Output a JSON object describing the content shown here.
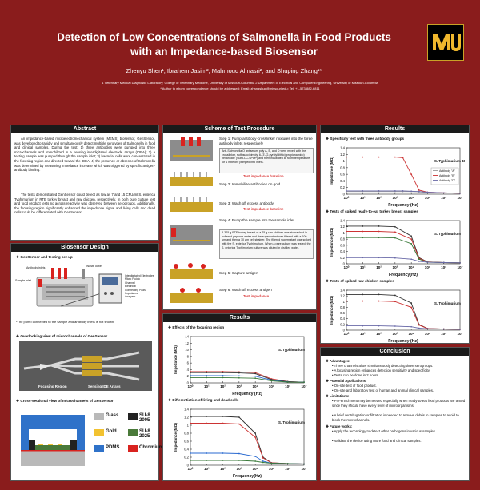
{
  "header": {
    "title_line1": "Detection of Low Concentrations of Salmonella in Food Products",
    "title_line2": "with an Impedance-based Biosensor",
    "authors": "Zhenyu Shen¹, Ibrahem Jasim², Mahmoud Almasri², and Shuping Zhang¹*",
    "affiliation": "1 Veterinary Medical Diagnostic Laboratory, College of Veterinary Medicine, University of Missouri-Columbia    2 Department of Electrical and Computer Engineering, University of Missouri-Columbia",
    "correspondence": "* Author to whom correspondence should be addressed; Email: zhangshup@missouri.edu; Tel: +1-573-882-6811",
    "logo_text": "MU"
  },
  "abstract": {
    "heading": "Abstract",
    "p1": "An impedance-based microelectromechanical system (MEMS) biosensor, GenSensor, was developed to rapidly and simultaneously detect multiple serotypes of Salmonella in food and clinical samples. During the test: 1) three antibodies were pumped into three microchannels and immobilized in a sensing interdigitated electrode arrays (IDEA); 2) a testing sample was pumped through the sample inlet; 3) bacterial cells were concentrated in the focusing region and directed toward the IDEA; 4) the presence or absence of Salmonella was determined by measuring impedance increase which was triggered by specific antigen-antibody binding.",
    "p2": "The tests demonstrated GenSensor could detect as low as 7 and 15 CFU/ml S. enterica Typhimurium in RTE turkey breast and raw chicken, respectively. In both pure culture test and food product tests no across-reactivity was observed between serogroups. Additionally, the focusing region significantly enhanced the impedance signal and living cells and dead cells could be differentiated with GenSensor."
  },
  "biosensor": {
    "heading": "Biosensor Design",
    "sub1": "GenSensor and testing set-up",
    "labels": [
      "Antibody inlets",
      "Sample inlet",
      "Waste outlet"
    ],
    "instrument_list": [
      "Interdigitated Electrodes",
      "Micro Fluidic",
      "Channel",
      "Electrical",
      "Connecting Pads",
      "Impedance",
      "Analyzer"
    ],
    "footnote": "*The pump connected to the sample and antibody inlets is not shown.",
    "sub2": "Overlooking view of microchannels of GenSensor",
    "chip_labels": [
      "Focusing Region",
      "Sensing IDE Arrays"
    ],
    "sub3": "Cross-sectional view of microchannels of GenSensor",
    "legend": [
      {
        "label": "Glass",
        "color": "#b9b9b9"
      },
      {
        "label": "SU-8 2005",
        "color": "#222222"
      },
      {
        "label": "Gold",
        "color": "#f2c230"
      },
      {
        "label": "SU-8 2025",
        "color": "#4a7a3a"
      },
      {
        "label": "PDMS",
        "color": "#2f72c9"
      },
      {
        "label": "Chromium",
        "color": "#d9231f"
      }
    ]
  },
  "scheme": {
    "heading": "Scheme of Test Procedure",
    "step1": "Step 1: Pump antibody-crosslinker mixtures into the three antibody inlets respectively",
    "note1": "Anti-Salmonella O antiserum poly A, B, and D were mixed with the crosslinker, sulfosuccinimidyl 6-(3'-(2-pyridyldithio) propionamido) hexanoate (Sulfo-LC-SPDP) and then incubated at room temperature for 1 h before pumped into inlets.",
    "test_impedance_baseline": "Test impedance baseline",
    "step2": "Step 2: Immobilize antibodies on gold",
    "step3": "Step 3: Wash off excess antibody",
    "step4": "Step 4: Pump the sample into the sample inlet",
    "note2": "A 325 g RTE turkey breast or a 25 g raw chicken was stomached in buffered peptone water and the supernatant was filtered with a 100 µm and then a 10 µm cell strainer. The filtered supernatant was spiked with the S. enterica Typhimurium. When a pure culture was tested, the S. enterica Typhimurium culture was diluted in distilled water.",
    "step5": "Step 5: Capture antigen",
    "step6": "Step 6: Wash off excess antigen",
    "test_impedance": "Test impedance"
  },
  "results_mid": {
    "heading": "Results",
    "sub1": "Effects of the focusing region",
    "sub2": "Differentiation of living and dead cells"
  },
  "results_right": {
    "heading": "Results",
    "sub1": "Specificity test with three antibody groups",
    "sub2": "Tests of spiked ready-to-eat turkey breast samples",
    "sub3": "Tests of spiked raw chicken samples"
  },
  "conclusion": {
    "heading": "Conclusion",
    "advantages_title": "Advantages:",
    "advantages": [
      "Three channels allow simultaneously detecting three serogroups.",
      "A focusing region enhances detection sensitivity and specificity.",
      "Tests can be done in 2 hours."
    ],
    "applications_title": "Potential Applications:",
    "applications": [
      "On-site test of food product.",
      "On-site and laboratory test of human and animal clinical samples."
    ],
    "limitations_title": "Limitations:",
    "limitations": [
      "Pre-enrichment may be needed especially when ready-to-eat food products are tested since they should have every level of microorganisms.",
      "A brief centrifugation or filtration is needed to remove debris in samples to avoid to block the microchannels."
    ],
    "future_title": "Future works:",
    "future": [
      "Apply the technology to detect other pathogens in various samples.",
      "Validate the device using more food and clinical samples."
    ]
  },
  "chart_data": [
    {
      "type": "line",
      "panel": "Specificity test with three antibody groups",
      "annotation": "S. Typhimurium 40 CFU/ml",
      "xlabel": "Frequency (Hz)",
      "ylabel": "Impedance (MΩ)",
      "xscale": "log",
      "xlim": [
        1,
        10000000
      ],
      "ylim": [
        0,
        1.4
      ],
      "x_ticks": [
        "10⁰",
        "10¹",
        "10²",
        "10³",
        "10⁴",
        "10⁵",
        "10⁶",
        "10⁷"
      ],
      "y_ticks": [
        "0",
        "0.2",
        "0.4",
        "0.6",
        "0.8",
        "1",
        "1.2",
        "1.4"
      ],
      "legend_position": "right",
      "series": [
        {
          "name": "Antibody \"A\"",
          "color": "#999999",
          "x": [
            1,
            10,
            100,
            1000,
            3000,
            10000,
            30000,
            100000,
            1000000,
            10000000
          ],
          "y": [
            0.08,
            0.08,
            0.08,
            0.08,
            0.08,
            0.08,
            0.07,
            0.05,
            0.04,
            0.03
          ]
        },
        {
          "name": "Antibody \"B\"",
          "color": "#cc3333",
          "x": [
            1,
            10,
            100,
            1000,
            3000,
            10000,
            30000,
            100000,
            1000000,
            10000000
          ],
          "y": [
            1.12,
            1.12,
            1.12,
            1.12,
            1.1,
            0.6,
            0.12,
            0.06,
            0.04,
            0.03
          ]
        },
        {
          "name": "Antibody \"D\"",
          "color": "#6a6aa8",
          "x": [
            1,
            10,
            100,
            1000,
            3000,
            10000,
            30000,
            100000,
            1000000,
            10000000
          ],
          "y": [
            0.1,
            0.1,
            0.1,
            0.1,
            0.1,
            0.09,
            0.08,
            0.06,
            0.04,
            0.03
          ]
        }
      ]
    },
    {
      "type": "line",
      "panel": "Tests of spiked ready-to-eat turkey breast samples",
      "annotation": "S. Typhimurium",
      "xlabel": "Frequency(Hz)",
      "ylabel": "Impedance (MΩ)",
      "xscale": "log",
      "xlim": [
        1,
        10000000
      ],
      "ylim": [
        0,
        1.4
      ],
      "x_ticks": [
        "10⁰",
        "10¹",
        "10²",
        "10³",
        "10⁴",
        "10⁵",
        "10⁶",
        "10⁷"
      ],
      "y_ticks": [
        "0",
        "0.2",
        "0.4",
        "0.6",
        "0.8",
        "1",
        "1.2",
        "1.4"
      ],
      "series": [
        {
          "color": "#333333",
          "x": [
            1,
            10,
            100,
            1000,
            10000,
            30000,
            100000,
            1000000,
            10000000
          ],
          "y": [
            1.22,
            1.22,
            1.22,
            1.2,
            0.9,
            0.2,
            0.06,
            0.04,
            0.03
          ]
        },
        {
          "color": "#cc3333",
          "x": [
            1,
            10,
            100,
            1000,
            10000,
            30000,
            100000,
            1000000,
            10000000
          ],
          "y": [
            1.05,
            1.05,
            1.05,
            1.03,
            0.8,
            0.18,
            0.06,
            0.04,
            0.03
          ]
        },
        {
          "color": "#3a7a3a",
          "x": [
            1,
            10,
            100,
            1000,
            10000,
            30000,
            100000,
            1000000,
            10000000
          ],
          "y": [
            0.85,
            0.85,
            0.85,
            0.84,
            0.65,
            0.15,
            0.05,
            0.04,
            0.03
          ]
        },
        {
          "color": "#6a6aa8",
          "x": [
            1,
            10,
            100,
            1000,
            10000,
            30000,
            100000,
            1000000,
            10000000
          ],
          "y": [
            0.2,
            0.2,
            0.2,
            0.19,
            0.15,
            0.08,
            0.05,
            0.04,
            0.03
          ]
        }
      ]
    },
    {
      "type": "line",
      "panel": "Tests of spiked raw chicken samples",
      "annotation": "S. Typhimurium",
      "xlabel": "Frequency (Hz)",
      "ylabel": "Impedance (MΩ)",
      "xscale": "log",
      "xlim": [
        1,
        10000000
      ],
      "ylim": [
        0,
        1.4
      ],
      "x_ticks": [
        "10⁰",
        "10¹",
        "10²",
        "10³",
        "10⁴",
        "10⁵",
        "10⁶",
        "10⁷"
      ],
      "y_ticks": [
        "0",
        "0.2",
        "0.4",
        "0.6",
        "0.8",
        "1",
        "1.2",
        "1.4"
      ],
      "series": [
        {
          "color": "#333333",
          "x": [
            1,
            10,
            100,
            1000,
            10000,
            30000,
            100000,
            1000000,
            10000000
          ],
          "y": [
            1.25,
            1.25,
            1.25,
            1.22,
            0.95,
            0.2,
            0.06,
            0.04,
            0.03
          ]
        },
        {
          "color": "#cc3333",
          "x": [
            1,
            10,
            100,
            1000,
            10000,
            30000,
            100000,
            1000000,
            10000000
          ],
          "y": [
            1.02,
            1.02,
            1.02,
            1.0,
            0.8,
            0.18,
            0.06,
            0.04,
            0.03
          ]
        },
        {
          "color": "#6a6aa8",
          "x": [
            1,
            10,
            100,
            1000,
            10000,
            30000,
            100000,
            1000000,
            10000000
          ],
          "y": [
            0.15,
            0.15,
            0.15,
            0.14,
            0.12,
            0.07,
            0.05,
            0.04,
            0.03
          ]
        }
      ]
    },
    {
      "type": "line",
      "panel": "Effects of the focusing region",
      "annotation": "S. Typhimurium",
      "xlabel": "Frequency (Hz)",
      "ylabel": "Impedance (MΩ)",
      "xscale": "log",
      "xlim": [
        1,
        10000000
      ],
      "ylim": [
        0,
        14
      ],
      "x_ticks": [
        "10⁰",
        "10¹",
        "10²",
        "10³",
        "10⁴",
        "10⁵",
        "10⁶",
        "10⁷"
      ],
      "y_ticks": [
        "0",
        "2",
        "4",
        "6",
        "8",
        "10",
        "12",
        "14"
      ],
      "legend_position": "top-right",
      "series": [
        {
          "color": "#cc3333",
          "x": [
            1,
            10,
            100,
            1000,
            10000,
            100000,
            1000000,
            10000000
          ],
          "y": [
            3.4,
            3.4,
            3.4,
            3.3,
            3.1,
            1.2,
            0.4,
            0.2
          ]
        },
        {
          "color": "#333333",
          "x": [
            1,
            10,
            100,
            1000,
            10000,
            100000,
            1000000,
            10000000
          ],
          "y": [
            3.1,
            3.1,
            3.1,
            3.0,
            2.8,
            1.0,
            0.35,
            0.2
          ]
        },
        {
          "color": "#2a6ad0",
          "x": [
            1,
            10,
            100,
            1000,
            10000,
            100000,
            1000000,
            10000000
          ],
          "y": [
            2.2,
            2.2,
            2.2,
            2.1,
            2.0,
            0.8,
            0.3,
            0.2
          ]
        },
        {
          "color": "#3a7a3a",
          "x": [
            1,
            10,
            100,
            1000,
            10000,
            100000,
            1000000,
            10000000
          ],
          "y": [
            1.6,
            1.6,
            1.6,
            1.5,
            1.4,
            0.6,
            0.25,
            0.2
          ]
        }
      ]
    },
    {
      "type": "line",
      "panel": "Differentiation of living and dead cells",
      "annotation": "S. Typhimurium",
      "xlabel": "Frequency(Hz)",
      "ylabel": "Impedance (MΩ)",
      "xscale": "log",
      "xlim": [
        1,
        10000000
      ],
      "ylim": [
        0,
        1.4
      ],
      "x_ticks": [
        "10⁰",
        "10¹",
        "10²",
        "10³",
        "10⁴",
        "10⁵",
        "10⁶",
        "10⁷"
      ],
      "y_ticks": [
        "0",
        "0.2",
        "0.4",
        "0.6",
        "0.8",
        "1",
        "1.2",
        "1.4"
      ],
      "series": [
        {
          "color": "#333333",
          "x": [
            1,
            10,
            100,
            1000,
            10000,
            30000,
            100000,
            1000000,
            10000000
          ],
          "y": [
            1.22,
            1.22,
            1.22,
            1.2,
            0.8,
            0.2,
            0.06,
            0.04,
            0.03
          ]
        },
        {
          "color": "#cc3333",
          "x": [
            1,
            10,
            100,
            1000,
            10000,
            30000,
            100000,
            1000000,
            10000000
          ],
          "y": [
            1.05,
            1.05,
            1.05,
            1.03,
            0.7,
            0.18,
            0.06,
            0.04,
            0.03
          ]
        },
        {
          "color": "#2a6ad0",
          "x": [
            1,
            10,
            100,
            1000,
            10000,
            30000,
            100000,
            1000000,
            10000000
          ],
          "y": [
            0.3,
            0.3,
            0.3,
            0.29,
            0.22,
            0.1,
            0.05,
            0.04,
            0.03
          ]
        },
        {
          "color": "#3a7a3a",
          "x": [
            1,
            10,
            100,
            1000,
            10000,
            30000,
            100000,
            1000000,
            10000000
          ],
          "y": [
            0.12,
            0.12,
            0.12,
            0.12,
            0.1,
            0.07,
            0.05,
            0.04,
            0.03
          ]
        }
      ]
    }
  ]
}
